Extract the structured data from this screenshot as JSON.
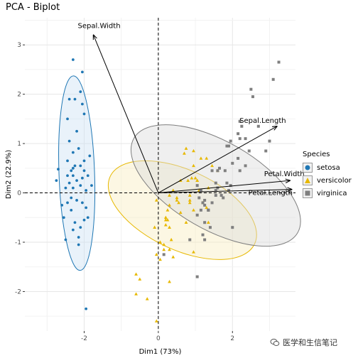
{
  "chart_data": {
    "type": "scatter",
    "title": "PCA - Biplot",
    "xlabel": "Dim1 (73%)",
    "ylabel": "Dim2 (22.9%)",
    "xlim": [
      -3.6,
      3.7
    ],
    "ylim": [
      -2.8,
      3.55
    ],
    "xticks": [
      -2,
      0,
      2
    ],
    "yticks": [
      -2,
      -1,
      0,
      1,
      2,
      3
    ],
    "grid": true,
    "legend_title": "Species",
    "legend_position": "right",
    "series": [
      {
        "name": "setosa",
        "color": "#1f77b4",
        "marker": "circle",
        "ellipse": {
          "cx": -2.2,
          "cy": 0.4,
          "rx": 0.48,
          "ry": 2.32,
          "angle_deg": 2
        },
        "points": [
          [
            -2.7,
            0.48
          ],
          [
            -2.75,
            0.25
          ],
          [
            -2.35,
            -0.1
          ],
          [
            -2.3,
            0.82
          ],
          [
            -2.45,
            1.5
          ],
          [
            -2.0,
            -0.55
          ],
          [
            -2.2,
            0.25
          ],
          [
            -2.3,
            0.35
          ],
          [
            -2.4,
            0.2
          ],
          [
            -2.1,
            0.15
          ],
          [
            -2.6,
            -0.25
          ],
          [
            -2.15,
            0.9
          ],
          [
            -2.05,
            1.8
          ],
          [
            -2.45,
            0.65
          ],
          [
            -2.25,
            0.55
          ],
          [
            -2.05,
            0.3
          ],
          [
            -1.95,
            0.05
          ],
          [
            -2.5,
            0.1
          ],
          [
            -2.35,
            -0.35
          ],
          [
            -2.15,
            -0.9
          ],
          [
            -2.3,
            -0.75
          ],
          [
            -1.9,
            -0.5
          ],
          [
            -2.0,
            0.65
          ],
          [
            -2.4,
            1.05
          ],
          [
            -2.2,
            1.25
          ],
          [
            -2.1,
            0.55
          ],
          [
            -1.85,
            0.75
          ],
          [
            -2.0,
            0.45
          ],
          [
            -2.3,
            0.1
          ],
          [
            -2.45,
            -0.2
          ],
          [
            -2.05,
            -0.2
          ],
          [
            -2.25,
            -0.6
          ],
          [
            -2.15,
            -1.05
          ],
          [
            -1.95,
            -0.3
          ],
          [
            -2.5,
            -0.95
          ],
          [
            -2.1,
            2.05
          ],
          [
            -2.05,
            2.45
          ],
          [
            -2.3,
            2.7
          ],
          [
            -2.4,
            1.9
          ],
          [
            -2.0,
            1.6
          ],
          [
            -2.25,
            1.9
          ],
          [
            -1.9,
            0.35
          ],
          [
            -2.35,
            0.45
          ],
          [
            -2.2,
            -0.15
          ],
          [
            -2.55,
            -0.5
          ],
          [
            -1.8,
            0.15
          ],
          [
            -2.45,
            0.35
          ],
          [
            -2.3,
            0.5
          ],
          [
            -2.1,
            -0.7
          ],
          [
            -1.95,
            -2.35
          ]
        ]
      },
      {
        "name": "versicolor",
        "color": "#e7b800",
        "marker": "triangle",
        "ellipse": {
          "cx": 0.65,
          "cy": -0.35,
          "rx": 2.15,
          "ry": 0.95,
          "angle_deg": 65
        },
        "points": [
          [
            1.3,
            0.7
          ],
          [
            0.9,
            0.3
          ],
          [
            1.45,
            0.55
          ],
          [
            0.3,
            -1.8
          ],
          [
            1.1,
            0.05
          ],
          [
            0.6,
            -0.4
          ],
          [
            1.0,
            0.3
          ],
          [
            -0.6,
            -1.65
          ],
          [
            1.05,
            0.25
          ],
          [
            0.05,
            -1.0
          ],
          [
            -0.3,
            -2.15
          ],
          [
            0.5,
            -0.1
          ],
          [
            0.3,
            -1.15
          ],
          [
            0.95,
            -0.35
          ],
          [
            -0.05,
            -0.15
          ],
          [
            0.95,
            0.85
          ],
          [
            0.55,
            -0.2
          ],
          [
            0.2,
            -0.65
          ],
          [
            0.95,
            -1.2
          ],
          [
            0.15,
            -1.15
          ],
          [
            1.05,
            0.25
          ],
          [
            0.4,
            0.05
          ],
          [
            1.3,
            -0.3
          ],
          [
            0.85,
            -0.15
          ],
          [
            0.8,
            0.25
          ],
          [
            0.95,
            0.55
          ],
          [
            1.35,
            0.1
          ],
          [
            1.6,
            0.45
          ],
          [
            0.85,
            -0.2
          ],
          [
            -0.1,
            -0.7
          ],
          [
            0.05,
            -1.35
          ],
          [
            -0.05,
            -1.25
          ],
          [
            0.25,
            -0.35
          ],
          [
            1.35,
            -0.6
          ],
          [
            0.5,
            -0.15
          ],
          [
            0.7,
            0.8
          ],
          [
            1.15,
            0.7
          ],
          [
            0.75,
            -0.6
          ],
          [
            0.3,
            -0.05
          ],
          [
            0.15,
            -1.05
          ],
          [
            0.35,
            -0.95
          ],
          [
            0.85,
            -0.05
          ],
          [
            0.2,
            -0.55
          ],
          [
            -0.6,
            -2.05
          ],
          [
            0.3,
            -0.7
          ],
          [
            0.2,
            -0.5
          ],
          [
            0.3,
            -0.25
          ],
          [
            0.6,
            0.25
          ],
          [
            -0.5,
            -1.75
          ],
          [
            0.25,
            -0.55
          ],
          [
            -0.05,
            -2.6
          ],
          [
            0.75,
            0.9
          ],
          [
            0.4,
            -1.3
          ],
          [
            1.2,
            -0.2
          ]
        ]
      },
      {
        "name": "virginica",
        "color": "#7f7f7f",
        "marker": "square",
        "ellipse": {
          "cx": 1.55,
          "cy": 0.15,
          "rx": 2.55,
          "ry": 1.05,
          "angle_deg": 60
        },
        "points": [
          [
            2.35,
            1.1
          ],
          [
            1.35,
            -0.35
          ],
          [
            2.2,
            0.45
          ],
          [
            1.6,
            0.1
          ],
          [
            1.9,
            0.05
          ],
          [
            2.9,
            0.85
          ],
          [
            0.15,
            -1.25
          ],
          [
            2.35,
            0.55
          ],
          [
            2.0,
            -0.7
          ],
          [
            2.55,
            1.95
          ],
          [
            1.45,
            0.45
          ],
          [
            1.45,
            -0.2
          ],
          [
            1.95,
            0.15
          ],
          [
            1.2,
            -0.85
          ],
          [
            1.35,
            -0.35
          ],
          [
            1.6,
            0.45
          ],
          [
            1.55,
            0.2
          ],
          [
            3.1,
            2.3
          ],
          [
            3.25,
            2.65
          ],
          [
            1.05,
            -1.7
          ],
          [
            2.15,
            0.7
          ],
          [
            1.15,
            -0.35
          ],
          [
            3.0,
            1.05
          ],
          [
            1.25,
            -0.15
          ],
          [
            1.95,
            1.05
          ],
          [
            2.25,
            1.35
          ],
          [
            1.15,
            0.05
          ],
          [
            1.1,
            -0.1
          ],
          [
            1.7,
            -0.05
          ],
          [
            2.2,
            1.45
          ],
          [
            2.45,
            0.85
          ],
          [
            2.5,
            2.1
          ],
          [
            1.75,
            -0.1
          ],
          [
            1.2,
            -0.2
          ],
          [
            1.05,
            -0.45
          ],
          [
            2.7,
            1.35
          ],
          [
            1.8,
            0.45
          ],
          [
            1.55,
            0.05
          ],
          [
            1.05,
            0.15
          ],
          [
            1.9,
            0.95
          ],
          [
            2.0,
            0.6
          ],
          [
            1.85,
            0.95
          ],
          [
            1.35,
            -0.35
          ],
          [
            2.2,
            1.1
          ],
          [
            2.15,
            1.2
          ],
          [
            1.85,
            0.2
          ],
          [
            1.25,
            -0.95
          ],
          [
            1.55,
            -0.05
          ],
          [
            1.65,
            0.5
          ],
          [
            1.25,
            -0.25
          ],
          [
            1.4,
            -0.7
          ],
          [
            0.85,
            -0.95
          ],
          [
            1.25,
            -0.6
          ]
        ]
      }
    ],
    "arrows": [
      {
        "label": "Sepal.Length",
        "x": 3.2,
        "y": 1.35
      },
      {
        "label": "Sepal.Width",
        "x": -1.75,
        "y": 3.2
      },
      {
        "label": "Petal.Width",
        "x": 3.55,
        "y": 0.25
      },
      {
        "label": "Petal.Length",
        "x": 3.6,
        "y": 0.07
      }
    ]
  },
  "legend": {
    "title": "Species",
    "items": [
      {
        "label": "setosa",
        "color": "#1f77b4",
        "marker": "circle"
      },
      {
        "label": "versicolor",
        "color": "#e7b800",
        "marker": "triangle"
      },
      {
        "label": "virginica",
        "color": "#7f7f7f",
        "marker": "square"
      }
    ]
  },
  "watermark": {
    "text": "医学和生信笔记",
    "icon": "wechat-icon"
  }
}
